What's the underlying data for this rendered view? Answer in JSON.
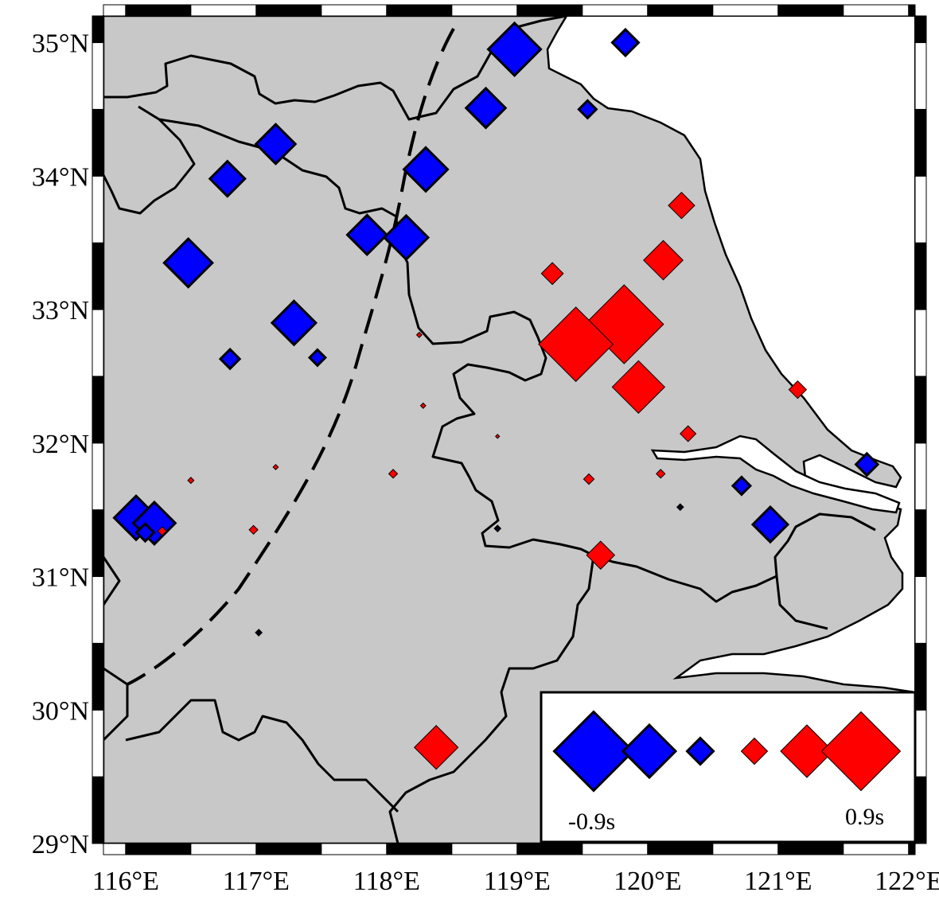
{
  "map": {
    "projection": "lon-lat",
    "extent": {
      "lon": [
        115.83,
        122.05
      ],
      "lat": [
        29.0,
        35.2
      ]
    },
    "land_color": "#c8c8c8",
    "sea_color": "#ffffff",
    "negative_color": "#0000ff",
    "positive_color": "#ff0000"
  },
  "axes": {
    "lat_ticks": [
      {
        "value": 35,
        "label": "35°N"
      },
      {
        "value": 34,
        "label": "34°N"
      },
      {
        "value": 33,
        "label": "33°N"
      },
      {
        "value": 32,
        "label": "32°N"
      },
      {
        "value": 31,
        "label": "31°N"
      },
      {
        "value": 30,
        "label": "30°N"
      },
      {
        "value": 29,
        "label": "29°N"
      }
    ],
    "lon_ticks": [
      {
        "value": 116,
        "label": "116°E"
      },
      {
        "value": 117,
        "label": "117°E"
      },
      {
        "value": 118,
        "label": "118°E"
      },
      {
        "value": 119,
        "label": "119°E"
      },
      {
        "value": 120,
        "label": "120°E"
      },
      {
        "value": 121,
        "label": "121°E"
      },
      {
        "value": 122,
        "label": "122°E"
      }
    ]
  },
  "stations": [
    {
      "lon": 118.98,
      "lat": 34.95,
      "value": -0.6
    },
    {
      "lon": 119.83,
      "lat": 35.0,
      "value": -0.3
    },
    {
      "lon": 118.76,
      "lat": 34.51,
      "value": -0.45
    },
    {
      "lon": 119.54,
      "lat": 34.5,
      "value": -0.2
    },
    {
      "lon": 117.15,
      "lat": 34.24,
      "value": -0.45
    },
    {
      "lon": 118.3,
      "lat": 34.05,
      "value": -0.5
    },
    {
      "lon": 116.78,
      "lat": 33.98,
      "value": -0.4
    },
    {
      "lon": 117.85,
      "lat": 33.56,
      "value": -0.45
    },
    {
      "lon": 118.15,
      "lat": 33.54,
      "value": -0.5
    },
    {
      "lon": 116.48,
      "lat": 33.35,
      "value": -0.55
    },
    {
      "lon": 117.29,
      "lat": 32.9,
      "value": -0.5
    },
    {
      "lon": 116.8,
      "lat": 32.63,
      "value": -0.22
    },
    {
      "lon": 117.47,
      "lat": 32.64,
      "value": -0.18
    },
    {
      "lon": 116.08,
      "lat": 31.44,
      "value": -0.5
    },
    {
      "lon": 116.22,
      "lat": 31.4,
      "value": -0.48
    },
    {
      "lon": 116.15,
      "lat": 31.33,
      "value": -0.2
    },
    {
      "lon": 120.94,
      "lat": 31.39,
      "value": -0.4
    },
    {
      "lon": 120.72,
      "lat": 31.68,
      "value": -0.2
    },
    {
      "lon": 121.68,
      "lat": 31.84,
      "value": -0.25
    },
    {
      "lon": 120.25,
      "lat": 31.52,
      "value": -0.05
    },
    {
      "lon": 118.85,
      "lat": 31.36,
      "value": -0.05
    },
    {
      "lon": 117.02,
      "lat": 30.58,
      "value": -0.05
    },
    {
      "lon": 120.26,
      "lat": 33.78,
      "value": 0.3
    },
    {
      "lon": 120.12,
      "lat": 33.37,
      "value": 0.45
    },
    {
      "lon": 119.27,
      "lat": 33.27,
      "value": 0.25
    },
    {
      "lon": 119.82,
      "lat": 32.89,
      "value": 0.9
    },
    {
      "lon": 119.45,
      "lat": 32.74,
      "value": 0.85
    },
    {
      "lon": 119.93,
      "lat": 32.42,
      "value": 0.6
    },
    {
      "lon": 121.15,
      "lat": 32.4,
      "value": 0.2
    },
    {
      "lon": 118.25,
      "lat": 32.81,
      "value": 0.06
    },
    {
      "lon": 118.28,
      "lat": 32.28,
      "value": 0.06
    },
    {
      "lon": 118.85,
      "lat": 32.05,
      "value": 0.04
    },
    {
      "lon": 120.31,
      "lat": 32.07,
      "value": 0.18
    },
    {
      "lon": 118.05,
      "lat": 31.77,
      "value": 0.1
    },
    {
      "lon": 117.15,
      "lat": 31.82,
      "value": 0.06
    },
    {
      "lon": 116.5,
      "lat": 31.72,
      "value": 0.07
    },
    {
      "lon": 116.98,
      "lat": 31.35,
      "value": 0.1
    },
    {
      "lon": 116.28,
      "lat": 31.34,
      "value": 0.1
    },
    {
      "lon": 119.55,
      "lat": 31.73,
      "value": 0.12
    },
    {
      "lon": 120.1,
      "lat": 31.77,
      "value": 0.1
    },
    {
      "lon": 119.64,
      "lat": 31.16,
      "value": 0.32
    },
    {
      "lon": 118.38,
      "lat": 29.72,
      "value": 0.5
    }
  ],
  "legend": {
    "values": [
      -0.9,
      -0.6,
      -0.3,
      0.3,
      0.6,
      0.9
    ],
    "min_label": "-0.9s",
    "max_label": "0.9s"
  }
}
